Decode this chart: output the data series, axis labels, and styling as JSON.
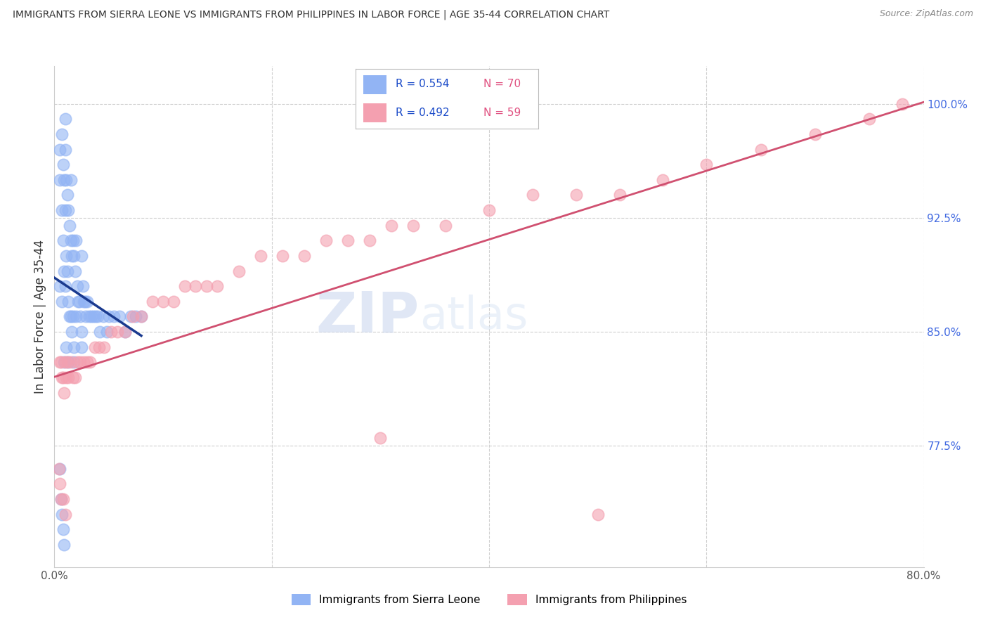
{
  "title": "IMMIGRANTS FROM SIERRA LEONE VS IMMIGRANTS FROM PHILIPPINES IN LABOR FORCE | AGE 35-44 CORRELATION CHART",
  "source": "Source: ZipAtlas.com",
  "ylabel": "In Labor Force | Age 35-44",
  "xlim": [
    0.0,
    0.8
  ],
  "ylim": [
    0.695,
    1.025
  ],
  "xtick_vals": [
    0.0,
    0.2,
    0.4,
    0.6,
    0.8
  ],
  "xticklabels": [
    "0.0%",
    "",
    "",
    "",
    "80.0%"
  ],
  "ytick_vals": [
    0.775,
    0.85,
    0.925,
    1.0
  ],
  "yticklabels": [
    "77.5%",
    "85.0%",
    "92.5%",
    "100.0%"
  ],
  "legend_R1": "R = 0.554",
  "legend_N1": "N = 70",
  "legend_R2": "R = 0.492",
  "legend_N2": "N = 59",
  "color_blue": "#92B4F4",
  "color_blue_line": "#1A3A8F",
  "color_pink": "#F4A0B0",
  "color_pink_line": "#D05070",
  "watermark_zip": "ZIP",
  "watermark_atlas": "atlas",
  "sl_x": [
    0.005,
    0.005,
    0.005,
    0.007,
    0.007,
    0.007,
    0.008,
    0.008,
    0.009,
    0.009,
    0.01,
    0.01,
    0.01,
    0.01,
    0.011,
    0.011,
    0.012,
    0.012,
    0.013,
    0.013,
    0.014,
    0.014,
    0.015,
    0.015,
    0.015,
    0.016,
    0.016,
    0.017,
    0.017,
    0.018,
    0.018,
    0.019,
    0.02,
    0.02,
    0.021,
    0.022,
    0.023,
    0.024,
    0.025,
    0.025,
    0.026,
    0.027,
    0.028,
    0.029,
    0.03,
    0.032,
    0.034,
    0.036,
    0.038,
    0.04,
    0.042,
    0.045,
    0.048,
    0.05,
    0.055,
    0.06,
    0.065,
    0.07,
    0.075,
    0.08,
    0.009,
    0.011,
    0.013,
    0.018,
    0.025,
    0.005,
    0.006,
    0.007,
    0.008,
    0.009
  ],
  "sl_y": [
    0.97,
    0.95,
    0.88,
    0.98,
    0.93,
    0.87,
    0.96,
    0.91,
    0.95,
    0.89,
    0.99,
    0.97,
    0.93,
    0.88,
    0.95,
    0.9,
    0.94,
    0.89,
    0.93,
    0.87,
    0.92,
    0.86,
    0.95,
    0.91,
    0.86,
    0.9,
    0.85,
    0.91,
    0.86,
    0.9,
    0.84,
    0.89,
    0.91,
    0.86,
    0.88,
    0.87,
    0.87,
    0.86,
    0.9,
    0.85,
    0.88,
    0.87,
    0.87,
    0.86,
    0.87,
    0.86,
    0.86,
    0.86,
    0.86,
    0.86,
    0.85,
    0.86,
    0.85,
    0.86,
    0.86,
    0.86,
    0.85,
    0.86,
    0.86,
    0.86,
    0.83,
    0.84,
    0.83,
    0.83,
    0.84,
    0.76,
    0.74,
    0.73,
    0.72,
    0.71
  ],
  "ph_x": [
    0.005,
    0.006,
    0.007,
    0.008,
    0.009,
    0.01,
    0.011,
    0.012,
    0.013,
    0.015,
    0.017,
    0.019,
    0.021,
    0.024,
    0.027,
    0.03,
    0.033,
    0.037,
    0.041,
    0.046,
    0.052,
    0.058,
    0.065,
    0.072,
    0.08,
    0.09,
    0.1,
    0.11,
    0.12,
    0.13,
    0.14,
    0.15,
    0.17,
    0.19,
    0.21,
    0.23,
    0.25,
    0.27,
    0.29,
    0.31,
    0.33,
    0.36,
    0.4,
    0.44,
    0.48,
    0.52,
    0.56,
    0.6,
    0.65,
    0.7,
    0.75,
    0.78,
    0.004,
    0.005,
    0.006,
    0.008,
    0.01,
    0.3,
    0.5
  ],
  "ph_y": [
    0.83,
    0.83,
    0.82,
    0.82,
    0.81,
    0.83,
    0.82,
    0.83,
    0.82,
    0.83,
    0.82,
    0.82,
    0.83,
    0.83,
    0.83,
    0.83,
    0.83,
    0.84,
    0.84,
    0.84,
    0.85,
    0.85,
    0.85,
    0.86,
    0.86,
    0.87,
    0.87,
    0.87,
    0.88,
    0.88,
    0.88,
    0.88,
    0.89,
    0.9,
    0.9,
    0.9,
    0.91,
    0.91,
    0.91,
    0.92,
    0.92,
    0.92,
    0.93,
    0.94,
    0.94,
    0.94,
    0.95,
    0.96,
    0.97,
    0.98,
    0.99,
    1.0,
    0.76,
    0.75,
    0.74,
    0.74,
    0.73,
    0.78,
    0.73
  ]
}
